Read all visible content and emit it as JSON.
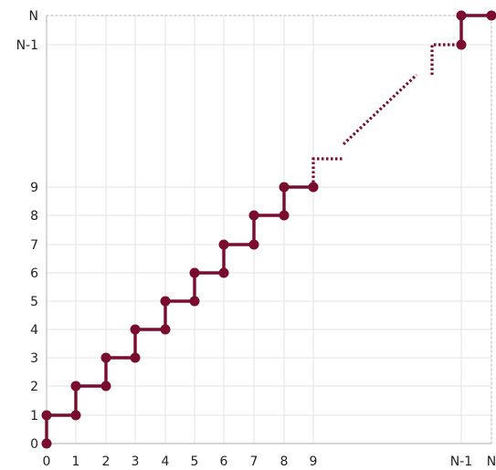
{
  "chart_data": {
    "type": "line",
    "title": "",
    "xlabel": "",
    "ylabel": "",
    "grid": true,
    "legend": "none",
    "color": "#7a0c2e",
    "x_ticks": [
      "0",
      "1",
      "2",
      "3",
      "4",
      "5",
      "6",
      "7",
      "8",
      "9",
      "N-1",
      "N"
    ],
    "y_ticks": [
      "0",
      "1",
      "2",
      "3",
      "4",
      "5",
      "6",
      "7",
      "8",
      "9",
      "N-1",
      "N"
    ],
    "series": [
      {
        "style": "solid",
        "points": [
          [
            0,
            0
          ],
          [
            0,
            1
          ],
          [
            1,
            1
          ],
          [
            1,
            2
          ],
          [
            2,
            2
          ],
          [
            2,
            3
          ],
          [
            3,
            3
          ],
          [
            3,
            4
          ],
          [
            4,
            4
          ],
          [
            4,
            5
          ],
          [
            5,
            5
          ],
          [
            5,
            6
          ],
          [
            6,
            6
          ],
          [
            6,
            7
          ],
          [
            7,
            7
          ],
          [
            7,
            8
          ],
          [
            8,
            8
          ],
          [
            8,
            9
          ],
          [
            9,
            9
          ]
        ]
      },
      {
        "style": "solid",
        "points": [
          [
            "N-1",
            "N-1"
          ],
          [
            "N-1",
            "N"
          ],
          [
            "N",
            "N"
          ]
        ]
      }
    ],
    "continuation_note": "dotted path indicates the pattern continues from (9,9) to (N-1,N-1)"
  }
}
